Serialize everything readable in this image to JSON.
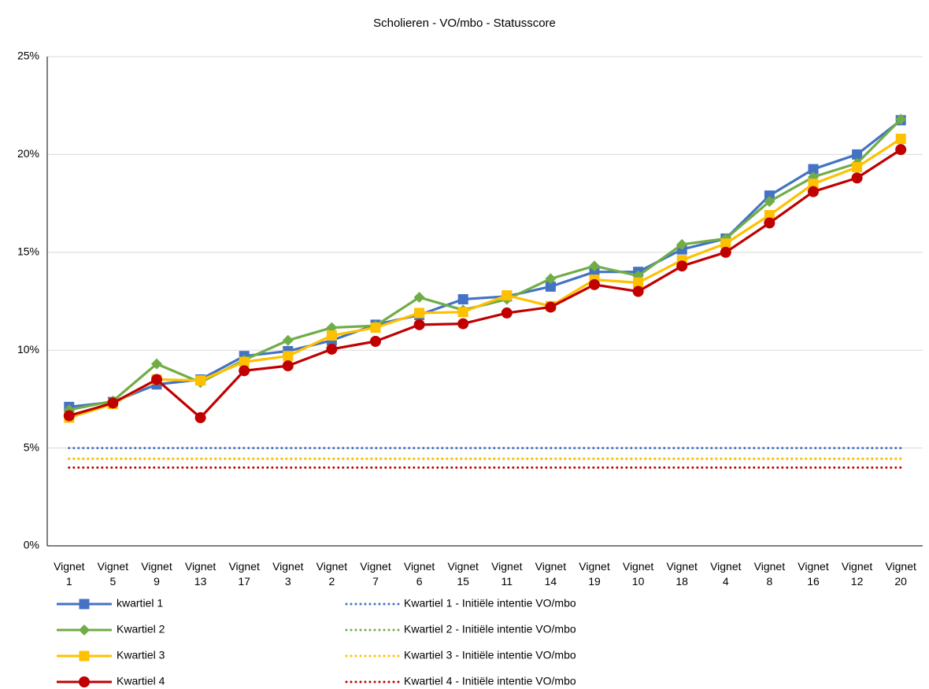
{
  "chart_data": {
    "type": "line",
    "title": "Scholieren - VO/mbo - Statusscore",
    "categories": [
      "Vignet 1",
      "Vignet 5",
      "Vignet 9",
      "Vignet 13",
      "Vignet 17",
      "Vignet 3",
      "Vignet 2",
      "Vignet 7",
      "Vignet 6",
      "Vignet 15",
      "Vignet 11",
      "Vignet 14",
      "Vignet 19",
      "Vignet 10",
      "Vignet 18",
      "Vignet 4",
      "Vignet 8",
      "Vignet 16",
      "Vignet 12",
      "Vignet 20"
    ],
    "ylim": [
      0,
      25
    ],
    "yticks": [
      {
        "value": 0,
        "label": "0%"
      },
      {
        "value": 5,
        "label": "5%"
      },
      {
        "value": 10,
        "label": "10%"
      },
      {
        "value": 15,
        "label": "15%"
      },
      {
        "value": 20,
        "label": "20%"
      },
      {
        "value": 25,
        "label": "25%"
      }
    ],
    "grid": true,
    "legend": "bottom",
    "series": [
      {
        "name": "kwartiel 1",
        "color": "#4472c4",
        "marker": "square",
        "dash": "solid",
        "values": [
          7.1,
          7.35,
          8.25,
          8.5,
          9.7,
          9.95,
          10.5,
          11.3,
          11.8,
          12.6,
          12.75,
          13.25,
          14.0,
          14.0,
          15.15,
          15.7,
          17.9,
          19.25,
          20.0,
          21.75
        ]
      },
      {
        "name": "Kwartiel 2",
        "color": "#70ad47",
        "marker": "diamond",
        "dash": "solid",
        "values": [
          6.95,
          7.4,
          9.3,
          8.35,
          9.5,
          10.5,
          11.15,
          11.25,
          12.7,
          12.05,
          12.6,
          13.65,
          14.3,
          13.8,
          15.4,
          15.7,
          17.6,
          18.85,
          19.55,
          21.8
        ]
      },
      {
        "name": "Kwartiel 3",
        "color": "#ffc000",
        "marker": "square",
        "dash": "solid",
        "values": [
          6.55,
          7.25,
          8.5,
          8.45,
          9.4,
          9.7,
          10.75,
          11.15,
          11.9,
          11.95,
          12.8,
          12.25,
          13.6,
          13.45,
          14.6,
          15.45,
          16.9,
          18.5,
          19.35,
          20.8
        ]
      },
      {
        "name": "Kwartiel 4",
        "color": "#c00000",
        "marker": "circle",
        "dash": "solid",
        "values": [
          6.65,
          7.3,
          8.5,
          6.55,
          8.95,
          9.2,
          10.05,
          10.45,
          11.3,
          11.35,
          11.9,
          12.2,
          13.35,
          13.0,
          14.3,
          15.0,
          16.5,
          18.1,
          18.8,
          20.25
        ]
      },
      {
        "name": "Kwartiel 1 - Initiële intentie VO/mbo",
        "color": "#4472c4",
        "marker": "none",
        "dash": "dotted",
        "values": [
          5,
          5,
          5,
          5,
          5,
          5,
          5,
          5,
          5,
          5,
          5,
          5,
          5,
          5,
          5,
          5,
          5,
          5,
          5,
          5
        ]
      },
      {
        "name": "Kwartiel 2 - Initiële intentie VO/mbo",
        "color": "#70ad47",
        "marker": "none",
        "dash": "dotted",
        "values": [
          4.45,
          4.45,
          4.45,
          4.45,
          4.45,
          4.45,
          4.45,
          4.45,
          4.45,
          4.45,
          4.45,
          4.45,
          4.45,
          4.45,
          4.45,
          4.45,
          4.45,
          4.45,
          4.45,
          4.45
        ]
      },
      {
        "name": "Kwartiel 3 - Initiële intentie VO/mbo",
        "color": "#ffc000",
        "marker": "none",
        "dash": "dotted",
        "values": [
          4.45,
          4.45,
          4.45,
          4.45,
          4.45,
          4.45,
          4.45,
          4.45,
          4.45,
          4.45,
          4.45,
          4.45,
          4.45,
          4.45,
          4.45,
          4.45,
          4.45,
          4.45,
          4.45,
          4.45
        ]
      },
      {
        "name": "Kwartiel 4 - Initiële intentie VO/mbo",
        "color": "#c00000",
        "marker": "none",
        "dash": "dotted",
        "values": [
          4,
          4,
          4,
          4,
          4,
          4,
          4,
          4,
          4,
          4,
          4,
          4,
          4,
          4,
          4,
          4,
          4,
          4,
          4,
          4
        ]
      }
    ]
  }
}
